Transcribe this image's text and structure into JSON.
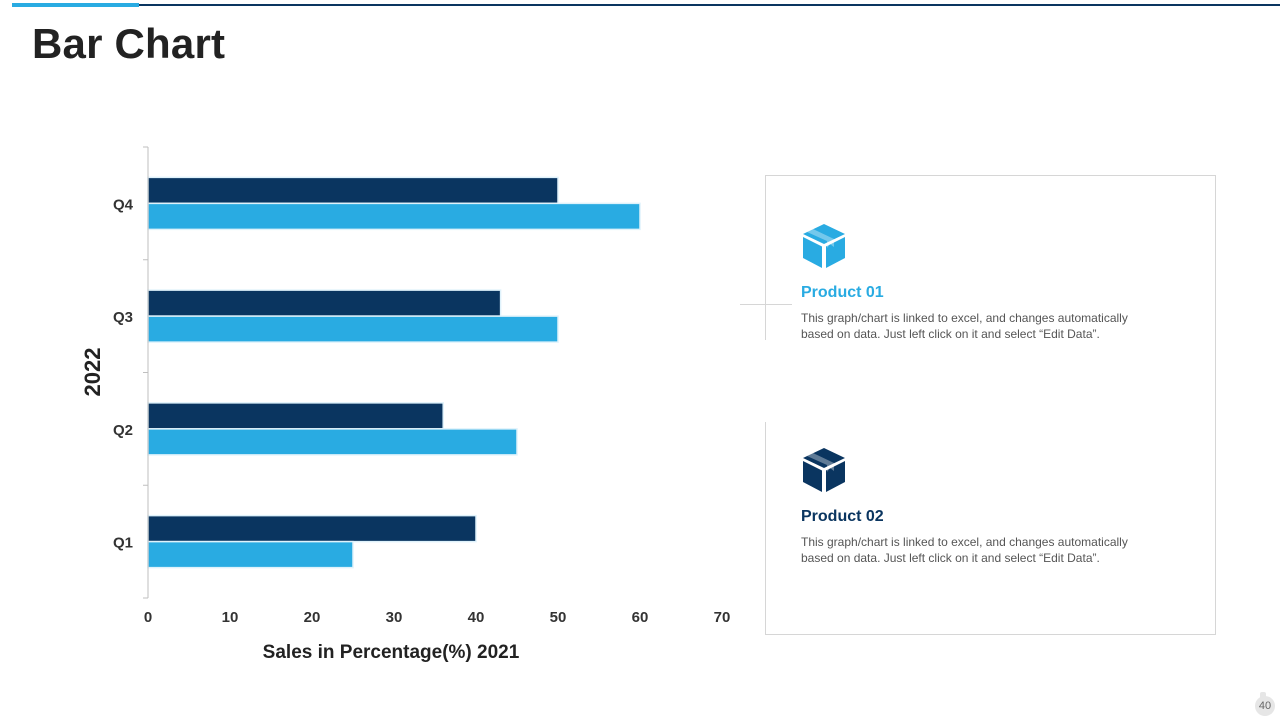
{
  "title": "Bar Chart",
  "chart_data": {
    "type": "bar",
    "orientation": "horizontal",
    "categories": [
      "Q1",
      "Q2",
      "Q3",
      "Q4"
    ],
    "series": [
      {
        "name": "Product 01",
        "color": "#29abe2",
        "values": [
          25,
          45,
          50,
          60
        ]
      },
      {
        "name": "Product 02",
        "color": "#0a3560",
        "values": [
          40,
          36,
          43,
          50
        ]
      }
    ],
    "xlabel": "Sales in Percentage(%) 2021",
    "ylabel": "2022",
    "xlim": [
      0,
      70
    ],
    "xticks": [
      0,
      10,
      20,
      30,
      40,
      50,
      60,
      70
    ],
    "grid": false,
    "legend": "none"
  },
  "products": [
    {
      "name": "Product 01",
      "color": "#29abe2",
      "icon": "box-icon",
      "description_line1": "This graph/chart is linked to excel, and changes automatically",
      "description_line2": "based on data. Just left click on it and select “Edit Data”."
    },
    {
      "name": "Product 02",
      "color": "#0a3560",
      "icon": "box-icon",
      "description_line1": "This graph/chart is linked to excel, and changes automatically",
      "description_line2": "based on data. Just left click on it and select “Edit Data”."
    }
  ],
  "page_number": "40"
}
